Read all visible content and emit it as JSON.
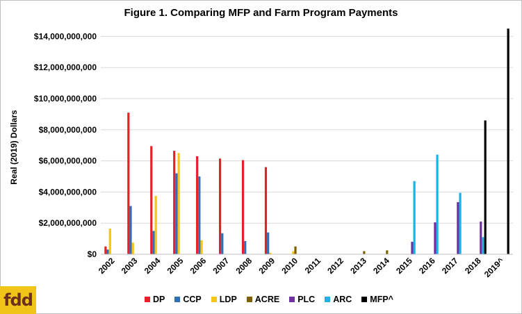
{
  "chart_data": {
    "type": "bar",
    "title": "Figure 1. Comparing MFP and Farm Program Payments",
    "xlabel": "",
    "ylabel": "Real (2019) Dollars",
    "ylim": [
      0,
      15000000000
    ],
    "yticks": [
      0,
      2000000000,
      4000000000,
      6000000000,
      8000000000,
      10000000000,
      12000000000,
      14000000000
    ],
    "ytick_labels": [
      "$0",
      "$2,000,000,000",
      "$4,000,000,000",
      "$6,000,000,000",
      "$8,000,000,000",
      "$10,000,000,000",
      "$12,000,000,000",
      "$14,000,000,000"
    ],
    "categories": [
      "2002",
      "2003",
      "2004",
      "2005",
      "2006",
      "2007",
      "2008",
      "2009",
      "2010",
      "2011",
      "2012",
      "2013",
      "2014",
      "2015",
      "2016",
      "2017",
      "2018",
      "2019^"
    ],
    "grid": true,
    "legend_position": "bottom",
    "series": [
      {
        "name": "DP",
        "color": "#e8202a",
        "values": [
          500000000,
          9100000000,
          6950000000,
          6650000000,
          6300000000,
          6150000000,
          6050000000,
          5600000000,
          0,
          0,
          0,
          0,
          0,
          0,
          0,
          0,
          0,
          0
        ]
      },
      {
        "name": "CCP",
        "color": "#2e6fb5",
        "values": [
          300000000,
          3100000000,
          1500000000,
          5200000000,
          5000000000,
          1350000000,
          850000000,
          1400000000,
          0,
          0,
          0,
          0,
          0,
          0,
          0,
          0,
          0,
          0
        ]
      },
      {
        "name": "LDP",
        "color": "#f5c518",
        "values": [
          1650000000,
          750000000,
          3750000000,
          6500000000,
          900000000,
          0,
          0,
          100000000,
          200000000,
          0,
          0,
          0,
          0,
          0,
          0,
          0,
          0,
          0
        ]
      },
      {
        "name": "ACRE",
        "color": "#7f6000",
        "values": [
          0,
          0,
          0,
          0,
          0,
          0,
          0,
          0,
          500000000,
          0,
          0,
          200000000,
          250000000,
          0,
          0,
          0,
          0,
          0
        ]
      },
      {
        "name": "PLC",
        "color": "#7030a0",
        "values": [
          0,
          0,
          0,
          0,
          0,
          0,
          0,
          0,
          0,
          0,
          0,
          0,
          0,
          800000000,
          2050000000,
          3350000000,
          2100000000,
          0
        ]
      },
      {
        "name": "ARC",
        "color": "#1ab3e6",
        "values": [
          0,
          0,
          0,
          0,
          0,
          0,
          0,
          0,
          0,
          0,
          0,
          0,
          0,
          4700000000,
          6400000000,
          3950000000,
          1100000000,
          0
        ]
      },
      {
        "name": "MFP^",
        "color": "#000000",
        "values": [
          0,
          0,
          0,
          0,
          0,
          0,
          0,
          0,
          0,
          0,
          0,
          0,
          0,
          0,
          0,
          0,
          8600000000,
          14500000000
        ]
      }
    ]
  },
  "logo": {
    "text": "fdd",
    "color": "#f0c419"
  }
}
